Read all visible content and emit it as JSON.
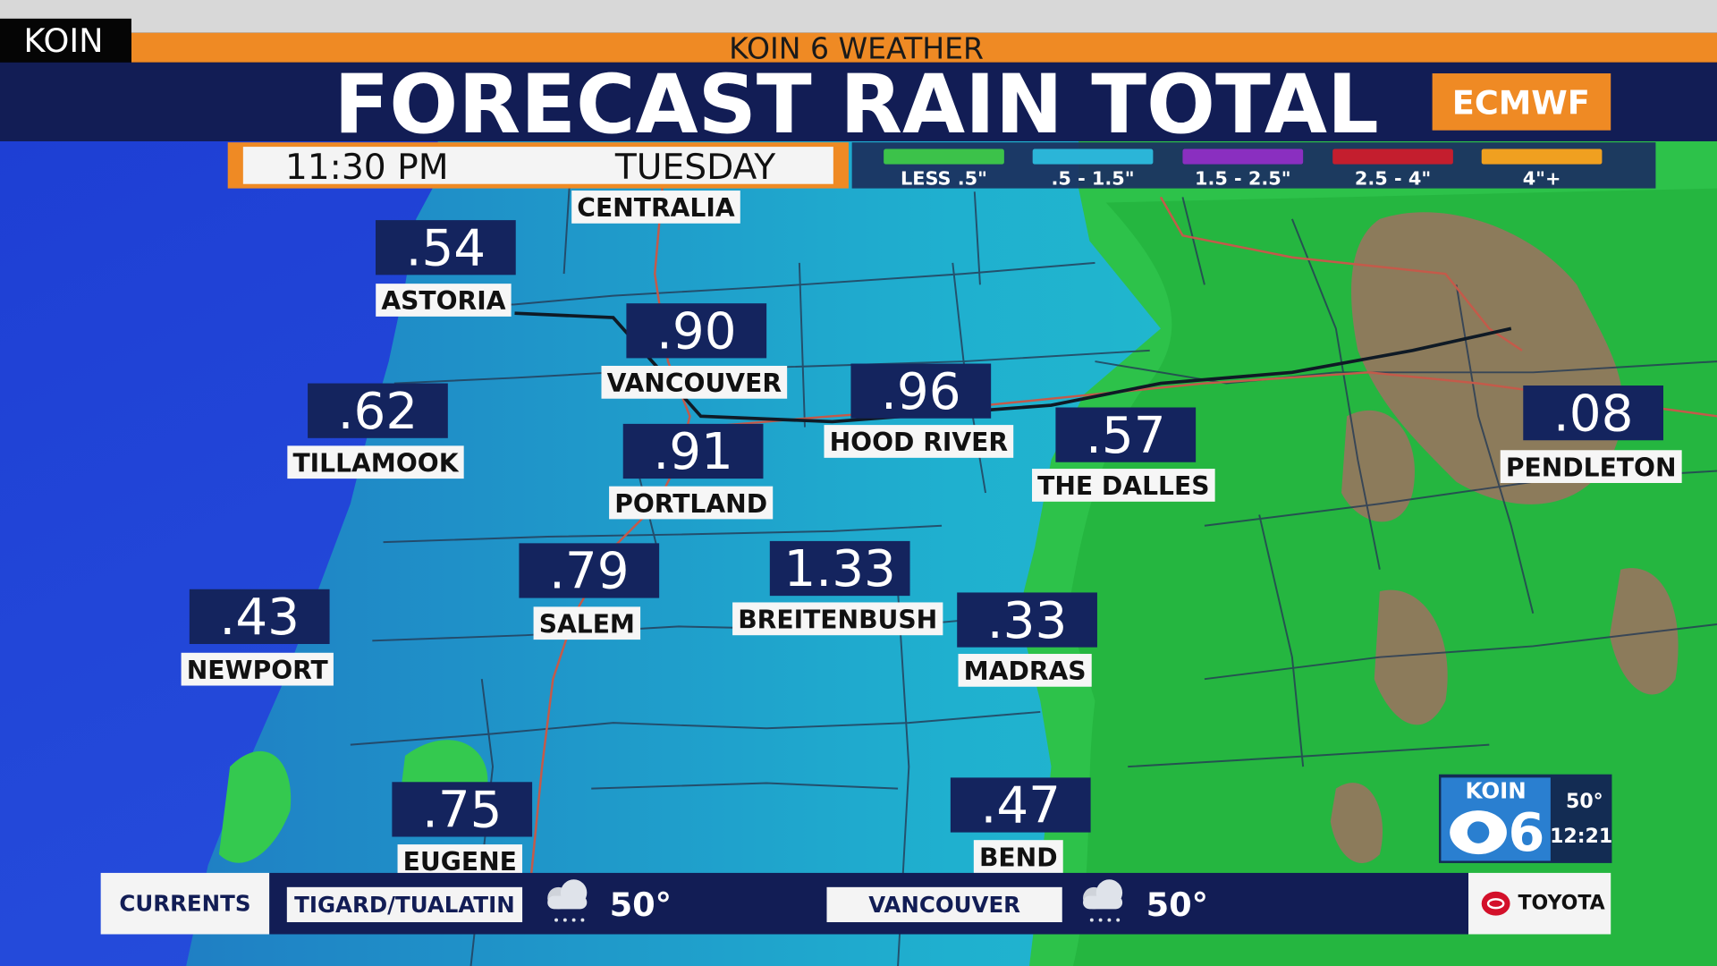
{
  "header": {
    "station": "KOIN",
    "banner": "KOIN 6 WEATHER",
    "title": "FORECAST RAIN TOTAL",
    "model": "ECMWF",
    "time": "11:30 PM",
    "day": "TUESDAY"
  },
  "legend": [
    {
      "label": "LESS .5\"",
      "color": "#3cc24a"
    },
    {
      "label": ".5 - 1.5\"",
      "color": "#2bb5d8"
    },
    {
      "label": "1.5 - 2.5\"",
      "color": "#8a2fc0"
    },
    {
      "label": "2.5 - 4\"",
      "color": "#c41e2e"
    },
    {
      "label": "4\"+",
      "color": "#f0a020"
    }
  ],
  "map": {
    "reference_labels": [
      "CENTRALIA"
    ],
    "cities": [
      {
        "name": "ASTORIA",
        "value": ".54"
      },
      {
        "name": "VANCOUVER",
        "value": ".90"
      },
      {
        "name": "HOOD RIVER",
        "value": ".96"
      },
      {
        "name": "TILLAMOOK",
        "value": ".62"
      },
      {
        "name": "PORTLAND",
        "value": ".91"
      },
      {
        "name": "THE DALLES",
        "value": ".57"
      },
      {
        "name": "PENDLETON",
        "value": ".08"
      },
      {
        "name": "SALEM",
        "value": ".79"
      },
      {
        "name": "BREITENBUSH",
        "value": "1.33"
      },
      {
        "name": "NEWPORT",
        "value": ".43"
      },
      {
        "name": "MADRAS",
        "value": ".33"
      },
      {
        "name": "EUGENE",
        "value": ".75"
      },
      {
        "name": "BEND",
        "value": ".47"
      }
    ]
  },
  "currents": {
    "title": "CURRENTS",
    "stations": [
      {
        "name": "TIGARD/TUALATIN",
        "temp": "50°"
      },
      {
        "name": "VANCOUVER",
        "temp": "50°"
      }
    ]
  },
  "logo": {
    "name": "KOIN",
    "channel": "6",
    "temp": "50°",
    "time": "12:21"
  },
  "sponsor": "TOYOTA"
}
